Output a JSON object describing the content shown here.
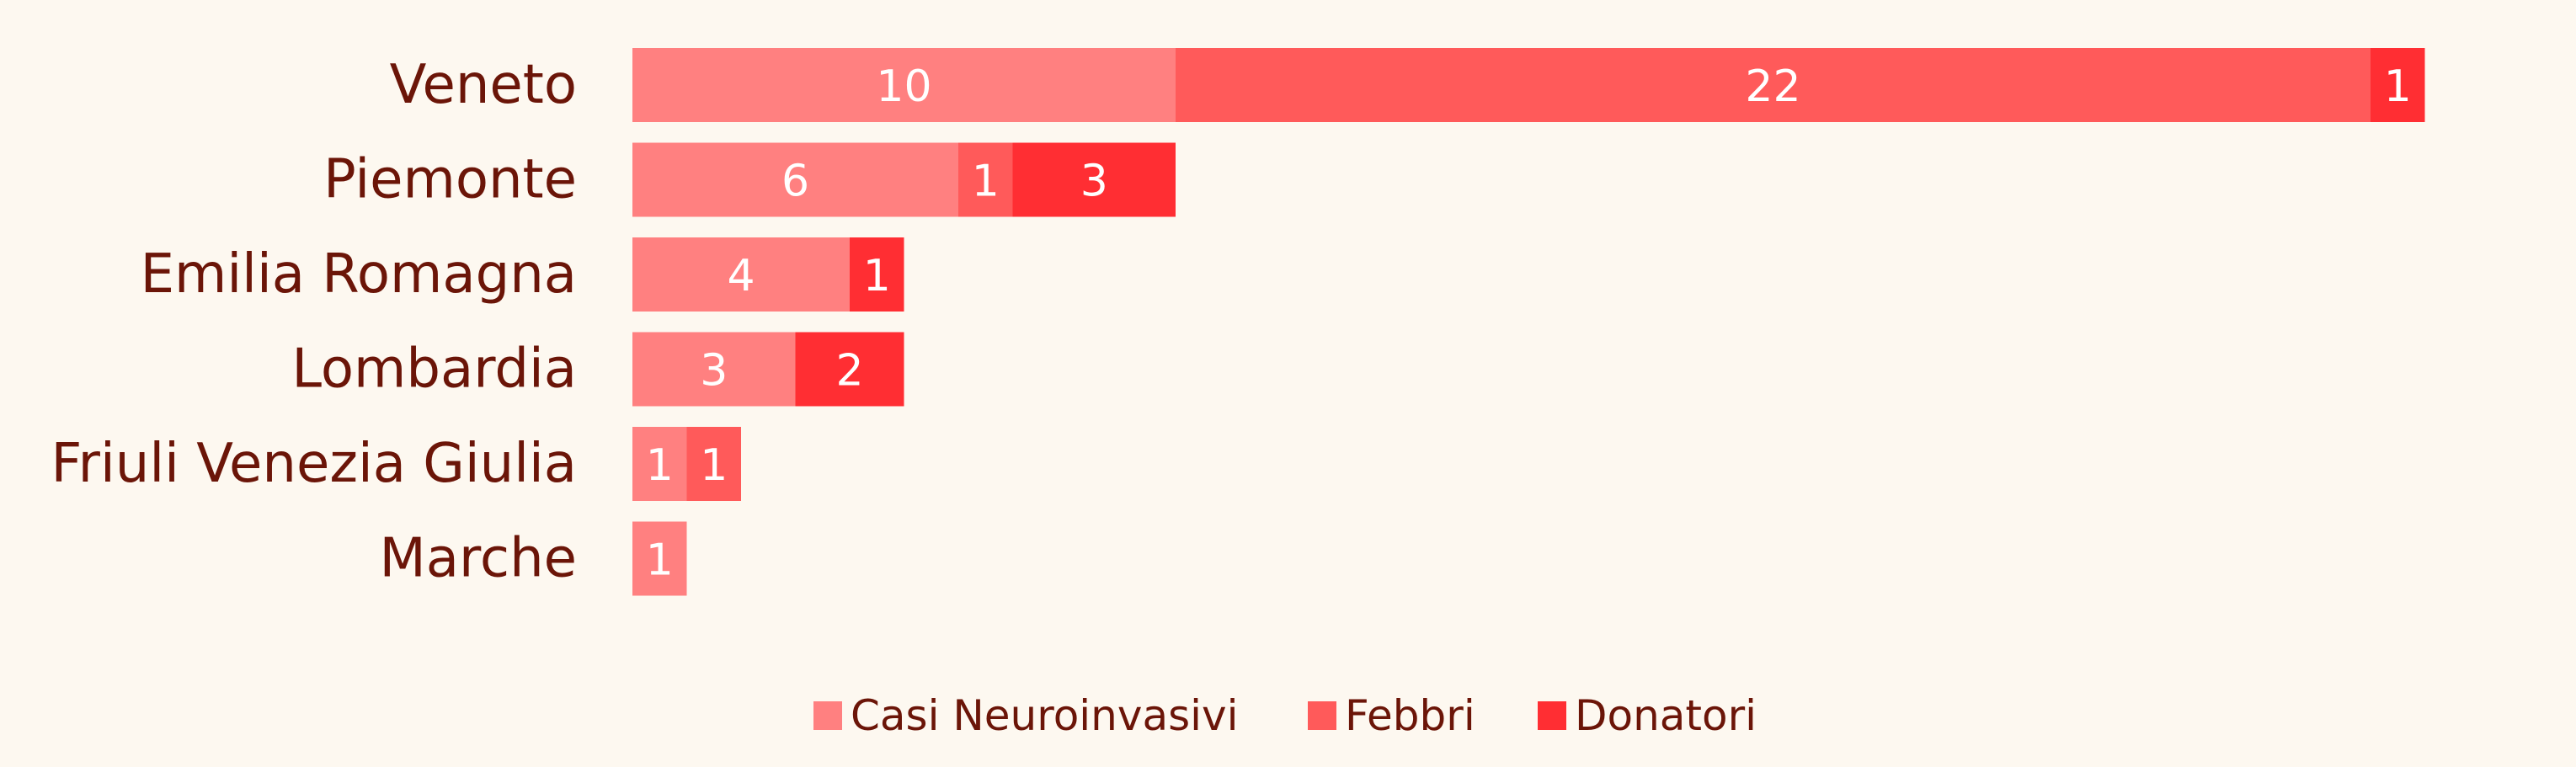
{
  "chart_data": {
    "type": "bar",
    "orientation": "horizontal",
    "stacked": true,
    "categories": [
      "Veneto",
      "Piemonte",
      "Emilia Romagna",
      "Lombardia",
      "Friuli Venezia Giulia",
      "Marche"
    ],
    "series": [
      {
        "name": "Casi Neuroinvasivi",
        "color": "#ff8080",
        "values": [
          10,
          6,
          4,
          3,
          1,
          1
        ]
      },
      {
        "name": "Febbri",
        "color": "#ff5a5a",
        "values": [
          22,
          1,
          0,
          0,
          1,
          0
        ]
      },
      {
        "name": "Donatori",
        "color": "#ff2e33",
        "values": [
          1,
          3,
          1,
          2,
          0,
          0
        ]
      }
    ],
    "title": "",
    "xlabel": "",
    "ylabel": "",
    "xlim": [
      0,
      33
    ],
    "grid": false,
    "legend_position": "bottom-center",
    "data_labels": true
  }
}
